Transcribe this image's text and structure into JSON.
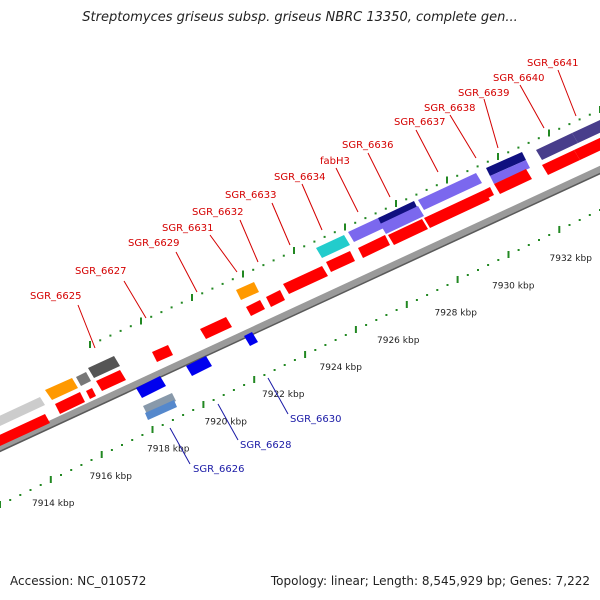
{
  "title": "Streptomyces griseus subsp. griseus NBRC 13350, complete gen...",
  "footer": {
    "accession": "Accession: NC_010572",
    "topology": "Topology: linear; Length: 8,545,929 bp; Genes: 7,222"
  },
  "colors": {
    "forward_gene": "#ff0000",
    "reverse_gene": "#0000ee",
    "orange_gene": "#ff9900",
    "gray_gene": "#888888",
    "dark_gray_gene": "#555555",
    "cyan_gene": "#22cccc",
    "lavender_gene": "#7b68ee",
    "navy_gene": "#101080",
    "slate_gene": "#483d8b",
    "backbone": "#888888",
    "tick": "#228822"
  },
  "axis_ticks": [
    "7914 kbp",
    "7916 kbp",
    "7918 kbp",
    "7920 kbp",
    "7922 kbp",
    "7924 kbp",
    "7926 kbp",
    "7928 kbp",
    "7930 kbp",
    "7932 kbp"
  ],
  "forward_labels": [
    "SGR_6625",
    "SGR_6627",
    "SGR_6629",
    "SGR_6631",
    "SGR_6632",
    "SGR_6633",
    "SGR_6634",
    "fabH3",
    "SGR_6636",
    "SGR_6637",
    "SGR_6638",
    "SGR_6639",
    "SGR_6640",
    "SGR_6641"
  ],
  "reverse_labels": [
    "SGR_6626",
    "SGR_6628",
    "SGR_6630"
  ]
}
